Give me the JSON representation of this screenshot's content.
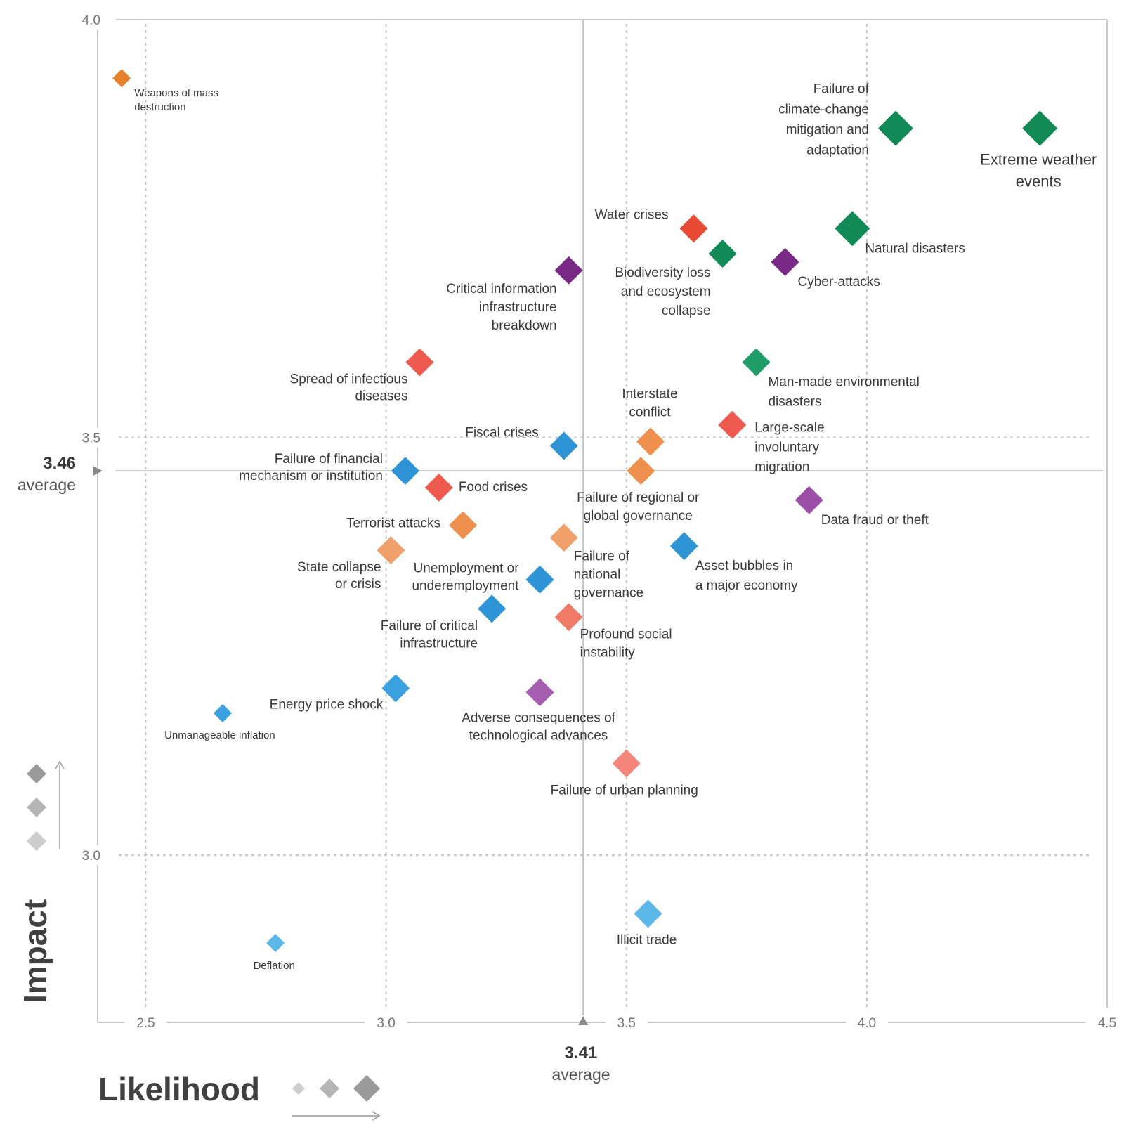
{
  "chart_data": {
    "type": "scatter",
    "xlabel": "Likelihood",
    "ylabel": "Impact",
    "xlim": [
      2.4,
      4.5
    ],
    "ylim": [
      2.8,
      4.0
    ],
    "x_ticks": [
      "2.5",
      "3.0",
      "3.5",
      "4.0",
      "4.5"
    ],
    "y_ticks": [
      "3.0",
      "3.5",
      "4.0"
    ],
    "averages": {
      "x": {
        "value": 3.41,
        "value_label": "3.41",
        "word": "average"
      },
      "y": {
        "value": 3.46,
        "value_label": "3.46",
        "word": "average"
      }
    },
    "grid": true,
    "points": [
      {
        "lines": [
          "Weapons of mass",
          "destruction"
        ],
        "x": 2.45,
        "y": 3.93,
        "size": "small",
        "color": "#E8812C"
      },
      {
        "lines": [
          "Failure of",
          "climate-change",
          "mitigation and",
          "adaptation"
        ],
        "x": 4.06,
        "y": 3.87,
        "size": "large",
        "color": "#128A55"
      },
      {
        "lines": [
          "Extreme weather",
          "events"
        ],
        "x": 4.36,
        "y": 3.87,
        "size": "large",
        "color": "#128A55"
      },
      {
        "lines": [
          "Water crises"
        ],
        "x": 3.64,
        "y": 3.75,
        "size": "medium",
        "color": "#E84B33"
      },
      {
        "lines": [
          "Biodiversity loss",
          "and ecosystem",
          "collapse"
        ],
        "x": 3.7,
        "y": 3.72,
        "size": "medium",
        "color": "#128A55"
      },
      {
        "lines": [
          "Natural disasters"
        ],
        "x": 3.97,
        "y": 3.75,
        "size": "large",
        "color": "#128A55"
      },
      {
        "lines": [
          "Cyber-attacks"
        ],
        "x": 3.83,
        "y": 3.71,
        "size": "medium",
        "color": "#7A2A86"
      },
      {
        "lines": [
          "Critical information",
          "infrastructure",
          "breakdown"
        ],
        "x": 3.38,
        "y": 3.7,
        "size": "medium",
        "color": "#7A2A86"
      },
      {
        "lines": [
          "Spread of infectious",
          "diseases"
        ],
        "x": 3.07,
        "y": 3.59,
        "size": "medium",
        "color": "#EE5B4E"
      },
      {
        "lines": [
          "Man-made environmental",
          "disasters"
        ],
        "x": 3.77,
        "y": 3.59,
        "size": "medium",
        "color": "#1F9E6A"
      },
      {
        "lines": [
          "Interstate",
          "conflict"
        ],
        "x": 3.55,
        "y": 3.495,
        "size": "medium",
        "color": "#F0904E"
      },
      {
        "lines": [
          "Large-scale",
          "involuntary",
          "migration"
        ],
        "x": 3.72,
        "y": 3.515,
        "size": "medium",
        "color": "#EE5B4E"
      },
      {
        "lines": [
          "Fiscal crises"
        ],
        "x": 3.37,
        "y": 3.49,
        "size": "medium",
        "color": "#2E94D6"
      },
      {
        "lines": [
          "Failure of financial",
          "mechanism or institution"
        ],
        "x": 3.04,
        "y": 3.46,
        "size": "medium",
        "color": "#2E94D6"
      },
      {
        "lines": [
          "Food crises"
        ],
        "x": 3.11,
        "y": 3.44,
        "size": "medium",
        "color": "#EE5B4E"
      },
      {
        "lines": [
          "Failure of regional or",
          "global governance"
        ],
        "x": 3.53,
        "y": 3.46,
        "size": "medium",
        "color": "#F0904E"
      },
      {
        "lines": [
          "Data fraud or theft"
        ],
        "x": 3.88,
        "y": 3.425,
        "size": "medium",
        "color": "#9A4EA8"
      },
      {
        "lines": [
          "Terrorist attacks"
        ],
        "x": 3.16,
        "y": 3.395,
        "size": "medium",
        "color": "#F0904E"
      },
      {
        "lines": [
          "Failure of",
          "national",
          "governance"
        ],
        "x": 3.37,
        "y": 3.38,
        "size": "medium",
        "color": "#F0A06A"
      },
      {
        "lines": [
          "State collapse",
          "or crisis"
        ],
        "x": 3.01,
        "y": 3.365,
        "size": "medium",
        "color": "#F0A06A"
      },
      {
        "lines": [
          "Asset bubbles in",
          "a major economy"
        ],
        "x": 3.62,
        "y": 3.37,
        "size": "medium",
        "color": "#2E94D6"
      },
      {
        "lines": [
          "Unemployment or",
          "underemployment"
        ],
        "x": 3.32,
        "y": 3.33,
        "size": "medium",
        "color": "#2E94D6"
      },
      {
        "lines": [
          "Failure of critical",
          "infrastructure"
        ],
        "x": 3.22,
        "y": 3.295,
        "size": "medium",
        "color": "#2E94D6"
      },
      {
        "lines": [
          "Profound social",
          "instability"
        ],
        "x": 3.38,
        "y": 3.285,
        "size": "medium",
        "color": "#F07A68"
      },
      {
        "lines": [
          "Energy price shock"
        ],
        "x": 3.02,
        "y": 3.2,
        "size": "medium",
        "color": "#3BA0DF"
      },
      {
        "lines": [
          "Adverse consequences of",
          "technological advances"
        ],
        "x": 3.32,
        "y": 3.195,
        "size": "medium",
        "color": "#A65FB0"
      },
      {
        "lines": [
          "Unmanageable inflation"
        ],
        "x": 2.66,
        "y": 3.17,
        "size": "small",
        "color": "#3BA0DF"
      },
      {
        "lines": [
          "Failure of urban planning"
        ],
        "x": 3.5,
        "y": 3.11,
        "size": "medium",
        "color": "#F4877A"
      },
      {
        "lines": [
          "Illicit trade"
        ],
        "x": 3.545,
        "y": 2.93,
        "size": "medium",
        "color": "#5BB8E8"
      },
      {
        "lines": [
          "Deflation"
        ],
        "x": 2.77,
        "y": 2.895,
        "size": "small",
        "color": "#5BB8E8"
      }
    ]
  }
}
